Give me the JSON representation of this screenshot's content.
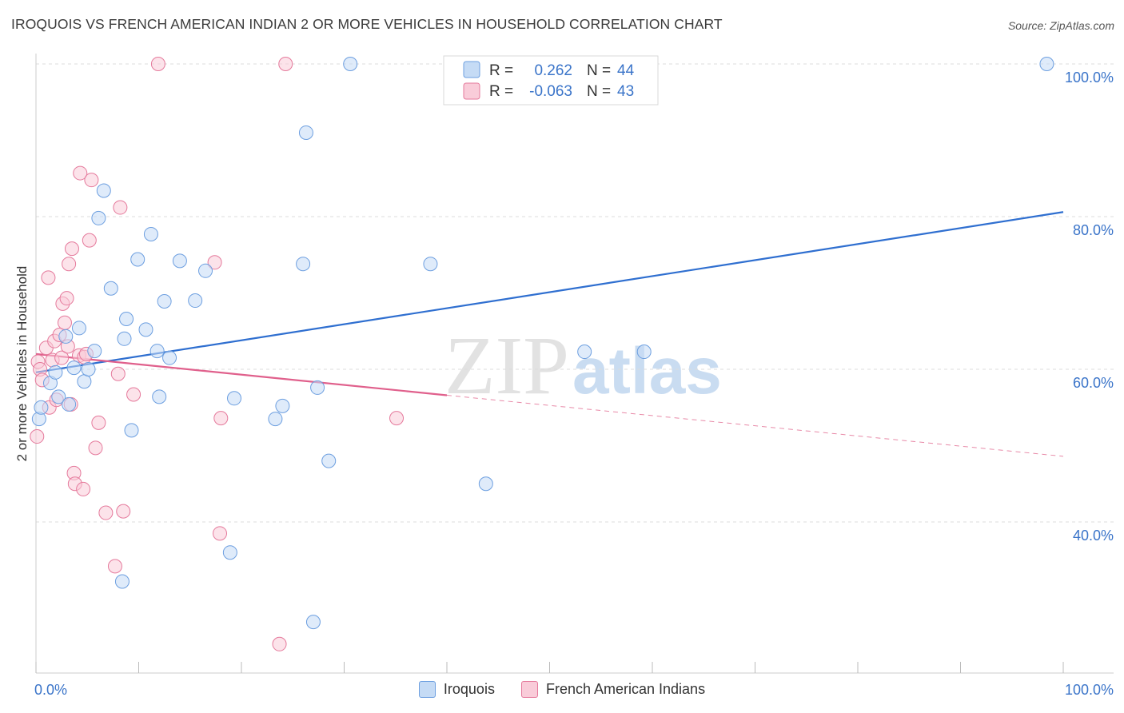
{
  "header": {
    "title": "IROQUOIS VS FRENCH AMERICAN INDIAN 2 OR MORE VEHICLES IN HOUSEHOLD CORRELATION CHART",
    "source": "Source: ZipAtlas.com"
  },
  "watermark": {
    "zip": "ZIP",
    "atlas": "atlas"
  },
  "chart_data": {
    "type": "scatter",
    "title": "IROQUOIS VS FRENCH AMERICAN INDIAN 2 OR MORE VEHICLES IN HOUSEHOLD CORRELATION CHART",
    "xlabel": "",
    "ylabel": "2 or more Vehicles in Household",
    "xlim": [
      0,
      100
    ],
    "ylim": [
      20,
      102
    ],
    "x_tick_labels": [
      "0.0%",
      "100.0%"
    ],
    "y_ticks": [
      40,
      60,
      80,
      100
    ],
    "y_tick_labels": [
      "40.0%",
      "60.0%",
      "80.0%",
      "100.0%"
    ],
    "grid": true,
    "legend_top": [
      {
        "r_label": "R =",
        "r_value": "0.262",
        "n_label": "N =",
        "n_value": "44"
      },
      {
        "r_label": "R =",
        "r_value": "-0.063",
        "n_label": "N =",
        "n_value": "43"
      }
    ],
    "series": [
      {
        "name": "Iroquois",
        "color": "#6d9fe0",
        "fill": "#c5dbf5",
        "r": 0.262,
        "n": 44,
        "trend": {
          "x": [
            0,
            100
          ],
          "y": [
            59.6,
            80.6
          ]
        },
        "points": [
          [
            0.3,
            53.5
          ],
          [
            0.5,
            55.0
          ],
          [
            1.4,
            58.2
          ],
          [
            1.9,
            59.6
          ],
          [
            2.2,
            56.4
          ],
          [
            2.9,
            64.3
          ],
          [
            3.2,
            55.4
          ],
          [
            3.7,
            60.2
          ],
          [
            4.2,
            65.4
          ],
          [
            4.7,
            58.4
          ],
          [
            5.1,
            60.0
          ],
          [
            5.7,
            62.4
          ],
          [
            6.1,
            79.8
          ],
          [
            6.6,
            83.4
          ],
          [
            7.3,
            70.6
          ],
          [
            8.4,
            32.2
          ],
          [
            8.6,
            64.0
          ],
          [
            8.8,
            66.6
          ],
          [
            9.3,
            52.0
          ],
          [
            9.9,
            74.4
          ],
          [
            10.7,
            65.2
          ],
          [
            11.2,
            77.7
          ],
          [
            11.8,
            62.4
          ],
          [
            12.0,
            56.4
          ],
          [
            12.5,
            68.9
          ],
          [
            13.0,
            61.5
          ],
          [
            14.0,
            74.2
          ],
          [
            15.5,
            69.0
          ],
          [
            16.5,
            72.9
          ],
          [
            18.9,
            36.0
          ],
          [
            19.3,
            56.2
          ],
          [
            23.3,
            53.5
          ],
          [
            24.0,
            55.2
          ],
          [
            26.0,
            73.8
          ],
          [
            26.3,
            91.0
          ],
          [
            27.0,
            26.9
          ],
          [
            27.4,
            57.6
          ],
          [
            28.5,
            48.0
          ],
          [
            30.6,
            100.0
          ],
          [
            38.4,
            73.8
          ],
          [
            43.8,
            45.0
          ],
          [
            53.4,
            62.3
          ],
          [
            59.2,
            62.3
          ],
          [
            98.4,
            100.0
          ]
        ]
      },
      {
        "name": "French American Indians",
        "color": "#e57a9c",
        "fill": "#f9ccd9",
        "r": -0.063,
        "n": 43,
        "trend": {
          "x": [
            0,
            40
          ],
          "y": [
            62.0,
            56.6
          ]
        },
        "trend_extension": {
          "x": [
            40,
            100
          ],
          "y": [
            56.6,
            48.6
          ]
        },
        "points": [
          [
            0.1,
            51.2
          ],
          [
            0.2,
            61.0
          ],
          [
            0.4,
            60.0
          ],
          [
            0.6,
            58.6
          ],
          [
            1.0,
            62.8
          ],
          [
            1.2,
            72.0
          ],
          [
            1.3,
            55.0
          ],
          [
            1.6,
            61.2
          ],
          [
            1.8,
            63.7
          ],
          [
            2.0,
            56.0
          ],
          [
            2.3,
            64.5
          ],
          [
            2.5,
            61.5
          ],
          [
            2.6,
            68.6
          ],
          [
            2.8,
            66.1
          ],
          [
            3.0,
            69.3
          ],
          [
            3.1,
            63.0
          ],
          [
            3.2,
            73.8
          ],
          [
            3.4,
            55.4
          ],
          [
            3.5,
            75.8
          ],
          [
            3.7,
            46.4
          ],
          [
            3.8,
            45.0
          ],
          [
            4.2,
            61.8
          ],
          [
            4.3,
            85.7
          ],
          [
            4.6,
            44.3
          ],
          [
            4.7,
            61.6
          ],
          [
            4.9,
            62.0
          ],
          [
            5.2,
            76.9
          ],
          [
            5.4,
            84.8
          ],
          [
            5.8,
            49.7
          ],
          [
            6.1,
            53.0
          ],
          [
            6.8,
            41.2
          ],
          [
            7.7,
            34.2
          ],
          [
            8.0,
            59.4
          ],
          [
            8.2,
            81.2
          ],
          [
            8.5,
            41.4
          ],
          [
            9.5,
            56.7
          ],
          [
            11.9,
            100.0
          ],
          [
            17.4,
            74.0
          ],
          [
            17.9,
            38.5
          ],
          [
            18.0,
            53.6
          ],
          [
            23.7,
            24.0
          ],
          [
            24.3,
            100.0
          ],
          [
            35.1,
            53.6
          ]
        ]
      }
    ]
  }
}
